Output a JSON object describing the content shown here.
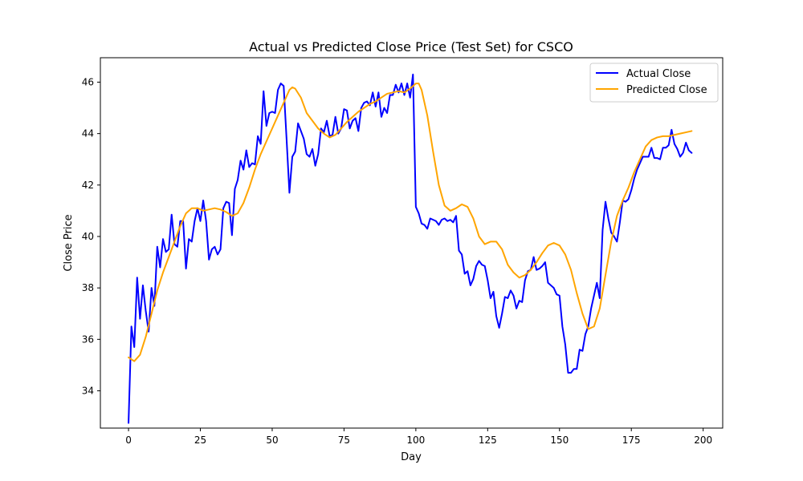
{
  "chart_data": {
    "type": "line",
    "title": "Actual vs Predicted Close Price (Test Set) for CSCO",
    "xlabel": "Day",
    "ylabel": "Close Price",
    "xlim": [
      -9.8,
      206.8
    ],
    "ylim": [
      32.55,
      46.95
    ],
    "xticks": [
      0,
      25,
      50,
      75,
      100,
      125,
      150,
      175,
      200
    ],
    "yticks": [
      34,
      36,
      38,
      40,
      42,
      44,
      46
    ],
    "grid": false,
    "legend": "upper right",
    "series": [
      {
        "name": "Actual Close",
        "color": "#0000ff",
        "x": [
          0,
          1,
          2,
          3,
          4,
          5,
          6,
          7,
          8,
          9,
          10,
          11,
          12,
          13,
          14,
          15,
          16,
          17,
          18,
          19,
          20,
          21,
          22,
          23,
          24,
          25,
          26,
          27,
          28,
          29,
          30,
          31,
          32,
          33,
          34,
          35,
          36,
          37,
          38,
          39,
          40,
          41,
          42,
          43,
          44,
          45,
          46,
          47,
          48,
          49,
          50,
          51,
          52,
          53,
          54,
          55,
          56,
          57,
          58,
          59,
          60,
          61,
          62,
          63,
          64,
          65,
          66,
          67,
          68,
          69,
          70,
          71,
          72,
          73,
          74,
          75,
          76,
          77,
          78,
          79,
          80,
          81,
          82,
          83,
          84,
          85,
          86,
          87,
          88,
          89,
          90,
          91,
          92,
          93,
          94,
          95,
          96,
          97,
          98,
          99,
          100,
          101,
          102,
          103,
          104,
          105,
          106,
          107,
          108,
          109,
          110,
          111,
          112,
          113,
          114,
          115,
          116,
          117,
          118,
          119,
          120,
          121,
          122,
          123,
          124,
          125,
          126,
          127,
          128,
          129,
          130,
          131,
          132,
          133,
          134,
          135,
          136,
          137,
          138,
          139,
          140,
          141,
          142,
          143,
          144,
          145,
          146,
          147,
          148,
          149,
          150,
          151,
          152,
          153,
          154,
          155,
          156,
          157,
          158,
          159,
          160,
          161,
          162,
          163,
          164,
          165,
          166,
          167,
          168,
          169,
          170,
          171,
          172,
          173,
          174,
          175,
          176,
          177,
          178,
          179,
          180,
          181,
          182,
          183,
          184,
          185,
          186,
          187,
          188,
          189,
          190,
          191,
          192,
          193,
          194,
          195,
          196
        ],
        "y": [
          32.75,
          36.5,
          35.7,
          38.4,
          36.8,
          38.1,
          37.1,
          36.3,
          38.0,
          37.3,
          39.6,
          38.8,
          39.9,
          39.4,
          39.5,
          40.85,
          39.7,
          39.6,
          40.6,
          40.6,
          38.75,
          39.9,
          39.8,
          40.6,
          41.1,
          40.6,
          41.4,
          40.6,
          39.1,
          39.5,
          39.6,
          39.3,
          39.5,
          41.1,
          41.35,
          41.3,
          40.05,
          41.85,
          42.2,
          42.95,
          42.6,
          43.35,
          42.7,
          42.85,
          42.8,
          43.9,
          43.6,
          45.65,
          44.3,
          44.8,
          44.85,
          44.8,
          45.7,
          45.95,
          45.85,
          43.8,
          41.7,
          43.1,
          43.3,
          44.4,
          44.1,
          43.8,
          43.2,
          43.1,
          43.4,
          42.75,
          43.2,
          44.2,
          44.05,
          44.5,
          43.9,
          43.95,
          44.65,
          44.0,
          44.2,
          44.95,
          44.9,
          44.2,
          44.5,
          44.6,
          44.1,
          45.0,
          45.2,
          45.25,
          45.1,
          45.6,
          45.05,
          45.6,
          44.65,
          45.0,
          44.8,
          45.5,
          45.5,
          45.9,
          45.6,
          45.95,
          45.5,
          45.95,
          45.4,
          46.3,
          41.15,
          40.9,
          40.5,
          40.45,
          40.3,
          40.7,
          40.65,
          40.6,
          40.45,
          40.65,
          40.7,
          40.6,
          40.65,
          40.55,
          40.8,
          39.45,
          39.3,
          38.55,
          38.65,
          38.1,
          38.35,
          38.85,
          39.05,
          38.9,
          38.85,
          38.3,
          37.6,
          37.85,
          36.9,
          36.45,
          37.0,
          37.65,
          37.6,
          37.9,
          37.7,
          37.2,
          37.5,
          37.45,
          38.3,
          38.65,
          38.7,
          39.2,
          38.7,
          38.75,
          38.85,
          39.0,
          38.2,
          38.1,
          38.0,
          37.75,
          37.7,
          36.5,
          35.8,
          34.7,
          34.7,
          34.85,
          34.85,
          35.6,
          35.55,
          36.2,
          36.5,
          37.2,
          37.7,
          38.2,
          37.6,
          40.25,
          41.35,
          40.7,
          40.15,
          40.0,
          39.8,
          40.55,
          41.4,
          41.35,
          41.45,
          41.8,
          42.25,
          42.6,
          42.85,
          43.1,
          43.1,
          43.1,
          43.45,
          43.05,
          43.05,
          43.0,
          43.45,
          43.45,
          43.55,
          44.15,
          43.6,
          43.4,
          43.1,
          43.25,
          43.65,
          43.35,
          43.25
        ]
      },
      {
        "name": "Predicted Close",
        "color": "#ffa500",
        "x": [
          0,
          2,
          4,
          6,
          8,
          10,
          12,
          14,
          16,
          18,
          20,
          22,
          24,
          26,
          28,
          30,
          32,
          34,
          36,
          38,
          40,
          42,
          44,
          46,
          48,
          50,
          52,
          54,
          56,
          57,
          58,
          60,
          62,
          64,
          66,
          68,
          70,
          72,
          74,
          76,
          78,
          80,
          82,
          84,
          86,
          88,
          90,
          92,
          94,
          96,
          98,
          100,
          101,
          102,
          104,
          106,
          108,
          110,
          112,
          114,
          116,
          118,
          120,
          122,
          124,
          126,
          128,
          130,
          132,
          134,
          136,
          138,
          140,
          142,
          144,
          146,
          148,
          150,
          152,
          154,
          156,
          158,
          160,
          162,
          164,
          166,
          168,
          170,
          172,
          174,
          176,
          178,
          180,
          182,
          184,
          186,
          188,
          190,
          192,
          194,
          196
        ],
        "y": [
          35.3,
          35.15,
          35.4,
          36.1,
          37.0,
          37.9,
          38.6,
          39.2,
          39.8,
          40.4,
          40.9,
          41.1,
          41.1,
          41.0,
          41.05,
          41.1,
          41.05,
          40.95,
          40.8,
          40.9,
          41.3,
          41.9,
          42.6,
          43.2,
          43.7,
          44.2,
          44.7,
          45.2,
          45.7,
          45.8,
          45.75,
          45.4,
          44.8,
          44.5,
          44.2,
          44.0,
          43.85,
          43.95,
          44.2,
          44.45,
          44.65,
          44.85,
          45.0,
          45.15,
          45.25,
          45.4,
          45.55,
          45.6,
          45.65,
          45.6,
          45.75,
          45.95,
          45.95,
          45.7,
          44.7,
          43.3,
          42.0,
          41.2,
          41.0,
          41.1,
          41.25,
          41.15,
          40.7,
          40.0,
          39.7,
          39.8,
          39.8,
          39.5,
          38.9,
          38.6,
          38.4,
          38.5,
          38.7,
          39.0,
          39.35,
          39.65,
          39.75,
          39.65,
          39.3,
          38.7,
          37.8,
          37.0,
          36.4,
          36.5,
          37.2,
          38.5,
          39.8,
          40.8,
          41.4,
          41.9,
          42.5,
          43.0,
          43.5,
          43.75,
          43.85,
          43.9,
          43.9,
          43.95,
          44.0,
          44.05,
          44.1
        ]
      }
    ]
  }
}
